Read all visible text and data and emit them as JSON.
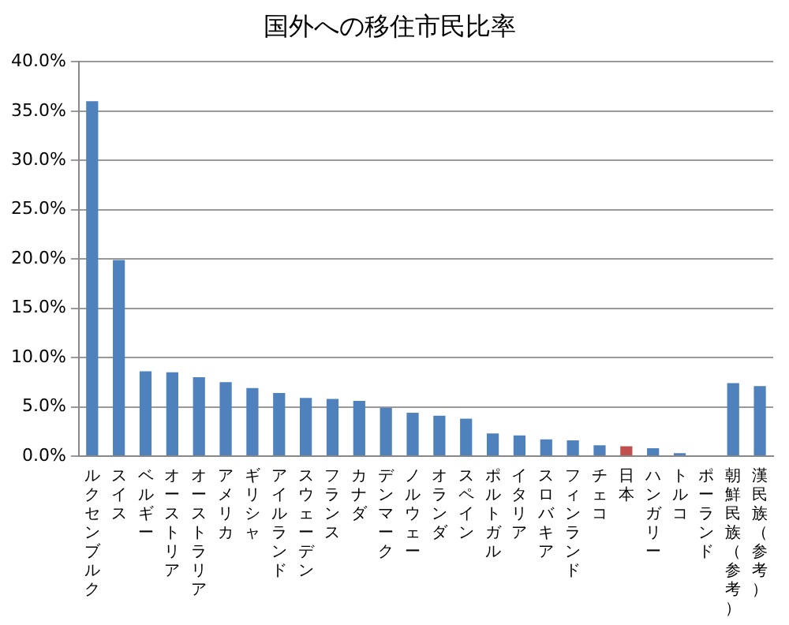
{
  "chart_data": {
    "type": "bar",
    "title": "国外への移住市民比率",
    "categories": [
      "ルクセンブルク",
      "スイス",
      "ベルギー",
      "オーストリア",
      "オーストラリア",
      "アメリカ",
      "ギリシャ",
      "アイルランド",
      "スウェーデン",
      "フランス",
      "カナダ",
      "デンマーク",
      "ノルウェー",
      "オランダ",
      "スペイン",
      "ポルトガル",
      "イタリア",
      "スロバキア",
      "フィンランド",
      "チェコ",
      "日本",
      "ハンガリー",
      "トルコ",
      "ポーランド",
      "朝鮮民族（参考）",
      "漢民族（参考）"
    ],
    "values": [
      36.0,
      19.9,
      8.6,
      8.5,
      8.0,
      7.5,
      6.9,
      6.4,
      5.9,
      5.8,
      5.6,
      4.9,
      4.4,
      4.1,
      3.8,
      2.3,
      2.1,
      1.7,
      1.6,
      1.1,
      1.0,
      0.8,
      0.3,
      null,
      7.4,
      7.1
    ],
    "colors": [
      "#4f81bd",
      "#4f81bd",
      "#4f81bd",
      "#4f81bd",
      "#4f81bd",
      "#4f81bd",
      "#4f81bd",
      "#4f81bd",
      "#4f81bd",
      "#4f81bd",
      "#4f81bd",
      "#4f81bd",
      "#4f81bd",
      "#4f81bd",
      "#4f81bd",
      "#4f81bd",
      "#4f81bd",
      "#4f81bd",
      "#4f81bd",
      "#4f81bd",
      "#c0504d",
      "#4f81bd",
      "#4f81bd",
      "#4f81bd",
      "#4f81bd",
      "#4f81bd"
    ],
    "ylim": [
      0,
      40
    ],
    "yticks": [
      {
        "value": 0,
        "label": "0.0%"
      },
      {
        "value": 5,
        "label": "5.0%"
      },
      {
        "value": 10,
        "label": "10.0%"
      },
      {
        "value": 15,
        "label": "15.0%"
      },
      {
        "value": 20,
        "label": "20.0%"
      },
      {
        "value": 25,
        "label": "25.0%"
      },
      {
        "value": 30,
        "label": "30.0%"
      },
      {
        "value": 35,
        "label": "35.0%"
      },
      {
        "value": 40,
        "label": "40.0%"
      }
    ],
    "grid": "y",
    "legend": false
  }
}
